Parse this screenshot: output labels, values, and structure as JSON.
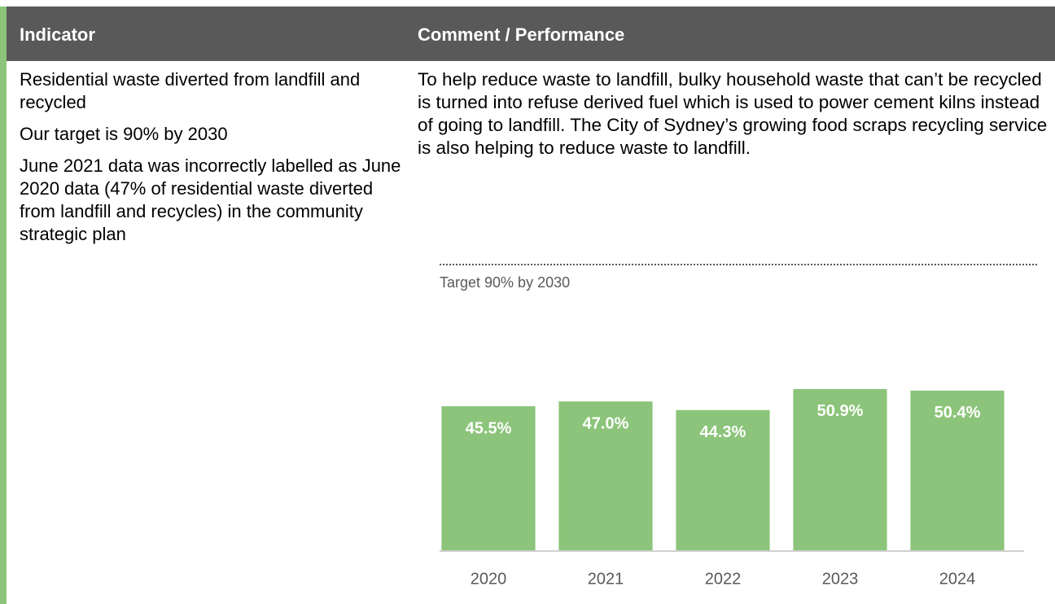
{
  "table": {
    "headers": [
      "Indicator",
      "Comment / Performance"
    ],
    "indicator": [
      "Residential waste diverted from landfill and recycled",
      "Our target is 90% by 2030",
      "June 2021 data was incorrectly labelled as June 2020 data (47% of residential waste diverted from landfill and recycles) in the community strategic plan"
    ],
    "comment": "To help reduce waste to landfill, bulky household waste that can’t be recycled is turned into refuse derived fuel which is used to power cement kilns instead of going to landfill. The City of Sydney’s growing food scraps recycling service is also helping to reduce waste to landfill."
  },
  "chart_data": {
    "type": "bar",
    "categories": [
      "2020",
      "2021",
      "2022",
      "2023",
      "2024"
    ],
    "values": [
      45.5,
      47.0,
      44.3,
      50.9,
      50.4
    ],
    "value_labels": [
      "45.5%",
      "47.0%",
      "44.3%",
      "50.9%",
      "50.4%"
    ],
    "color": "#8bc47a",
    "ylim": [
      0,
      90
    ],
    "target": {
      "value": 90,
      "label": "Target 90% by 2030"
    }
  }
}
